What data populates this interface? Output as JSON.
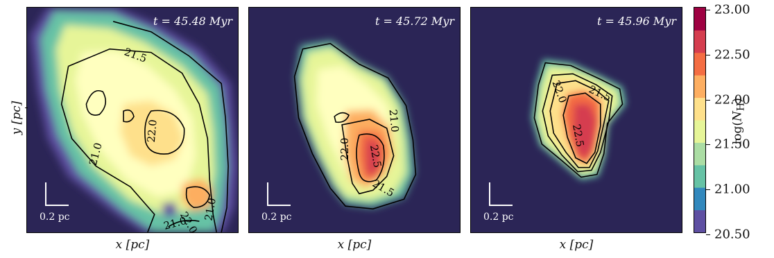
{
  "figure": {
    "panels": [
      {
        "time_label": "t = 45.48 Myr",
        "scale_label": "0.2 pc",
        "xlabel": "x [pc]"
      },
      {
        "time_label": "t = 45.72 Myr",
        "scale_label": "0.2 pc",
        "xlabel": "x [pc]"
      },
      {
        "time_label": "t = 45.96 Myr",
        "scale_label": "0.2 pc",
        "xlabel": "x [pc]"
      }
    ],
    "ylabel": "y [pc]",
    "colorbar": {
      "label": "log(N_H)",
      "ticks": [
        "23.00",
        "22.50",
        "22.00",
        "21.50",
        "21.00",
        "20.50"
      ],
      "colors": [
        "#5e4fa2",
        "#3288bd",
        "#66c2a5",
        "#abdda4",
        "#e6f598",
        "#fee08b",
        "#fdae61",
        "#f46d43",
        "#d53e4f",
        "#9e0142"
      ]
    },
    "contour_labels": {
      "panel1": [
        "21.5",
        "22.0",
        "21.0",
        "22.0",
        "21.0",
        "21.0"
      ],
      "panel2": [
        "21.0",
        "22.0",
        "22.5",
        "21.5"
      ],
      "panel3": [
        "22.0",
        "21.5",
        "22.5"
      ]
    }
  },
  "chart_data": [
    {
      "type": "heatmap",
      "title": "t = 45.48 Myr",
      "xlabel": "x [pc]",
      "ylabel": "y [pc]",
      "colorbar_label": "log(N_H)",
      "zlim": [
        20.5,
        23.0
      ],
      "contour_levels": [
        21.0,
        21.5,
        22.0
      ],
      "scale_bar": "0.2 pc"
    },
    {
      "type": "heatmap",
      "title": "t = 45.72 Myr",
      "xlabel": "x [pc]",
      "colorbar_label": "log(N_H)",
      "zlim": [
        20.5,
        23.0
      ],
      "contour_levels": [
        21.0,
        21.5,
        22.0,
        22.5
      ],
      "scale_bar": "0.2 pc"
    },
    {
      "type": "heatmap",
      "title": "t = 45.96 Myr",
      "xlabel": "x [pc]",
      "colorbar_label": "log(N_H)",
      "zlim": [
        20.5,
        23.0
      ],
      "contour_levels": [
        21.5,
        22.0,
        22.5
      ],
      "scale_bar": "0.2 pc"
    }
  ]
}
